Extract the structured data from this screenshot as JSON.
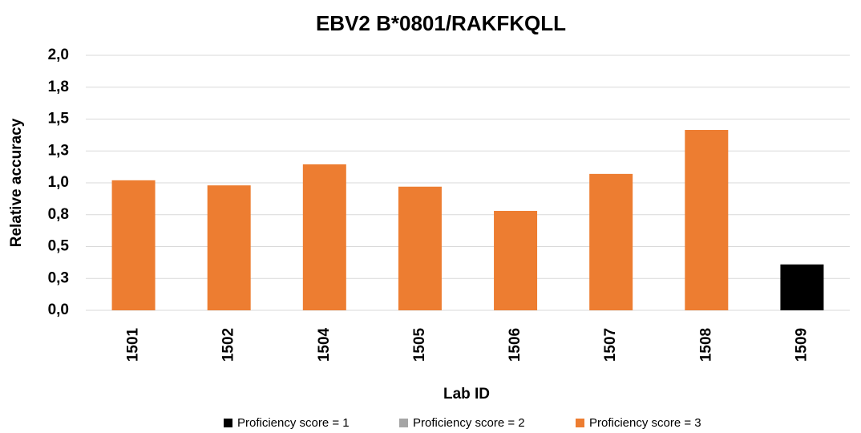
{
  "chart_data": {
    "type": "bar",
    "title": "EBV2 B*0801/RAKFKQLL",
    "x_label": "Lab ID",
    "y_label": "Relative accuracy",
    "categories": [
      "1501",
      "1502",
      "1504",
      "1505",
      "1506",
      "1507",
      "1508",
      "1509"
    ],
    "series": [
      {
        "name": "Proficiency score = 1",
        "color": "#000000",
        "values": [
          null,
          null,
          null,
          null,
          null,
          null,
          null,
          0.36
        ]
      },
      {
        "name": "Proficiency score = 2",
        "color": "#a5a5a5",
        "values": [
          null,
          null,
          null,
          null,
          null,
          null,
          null,
          null
        ]
      },
      {
        "name": "Proficiency score = 3",
        "color": "#ed7d31",
        "values": [
          1.02,
          0.98,
          1.145,
          0.97,
          0.78,
          1.07,
          1.415,
          null
        ]
      }
    ],
    "ylim": [
      0,
      2
    ],
    "yticks": [
      {
        "value": 0,
        "label": "0,0"
      },
      {
        "value": 0.25,
        "label": "0,3"
      },
      {
        "value": 0.5,
        "label": "0,5"
      },
      {
        "value": 0.75,
        "label": "0,8"
      },
      {
        "value": 1,
        "label": "1,0"
      },
      {
        "value": 1.25,
        "label": "1,3"
      },
      {
        "value": 1.5,
        "label": "1,5"
      },
      {
        "value": 1.75,
        "label": "1,8"
      },
      {
        "value": 2,
        "label": "2,0"
      }
    ],
    "grid": true,
    "legend": "bottom"
  }
}
